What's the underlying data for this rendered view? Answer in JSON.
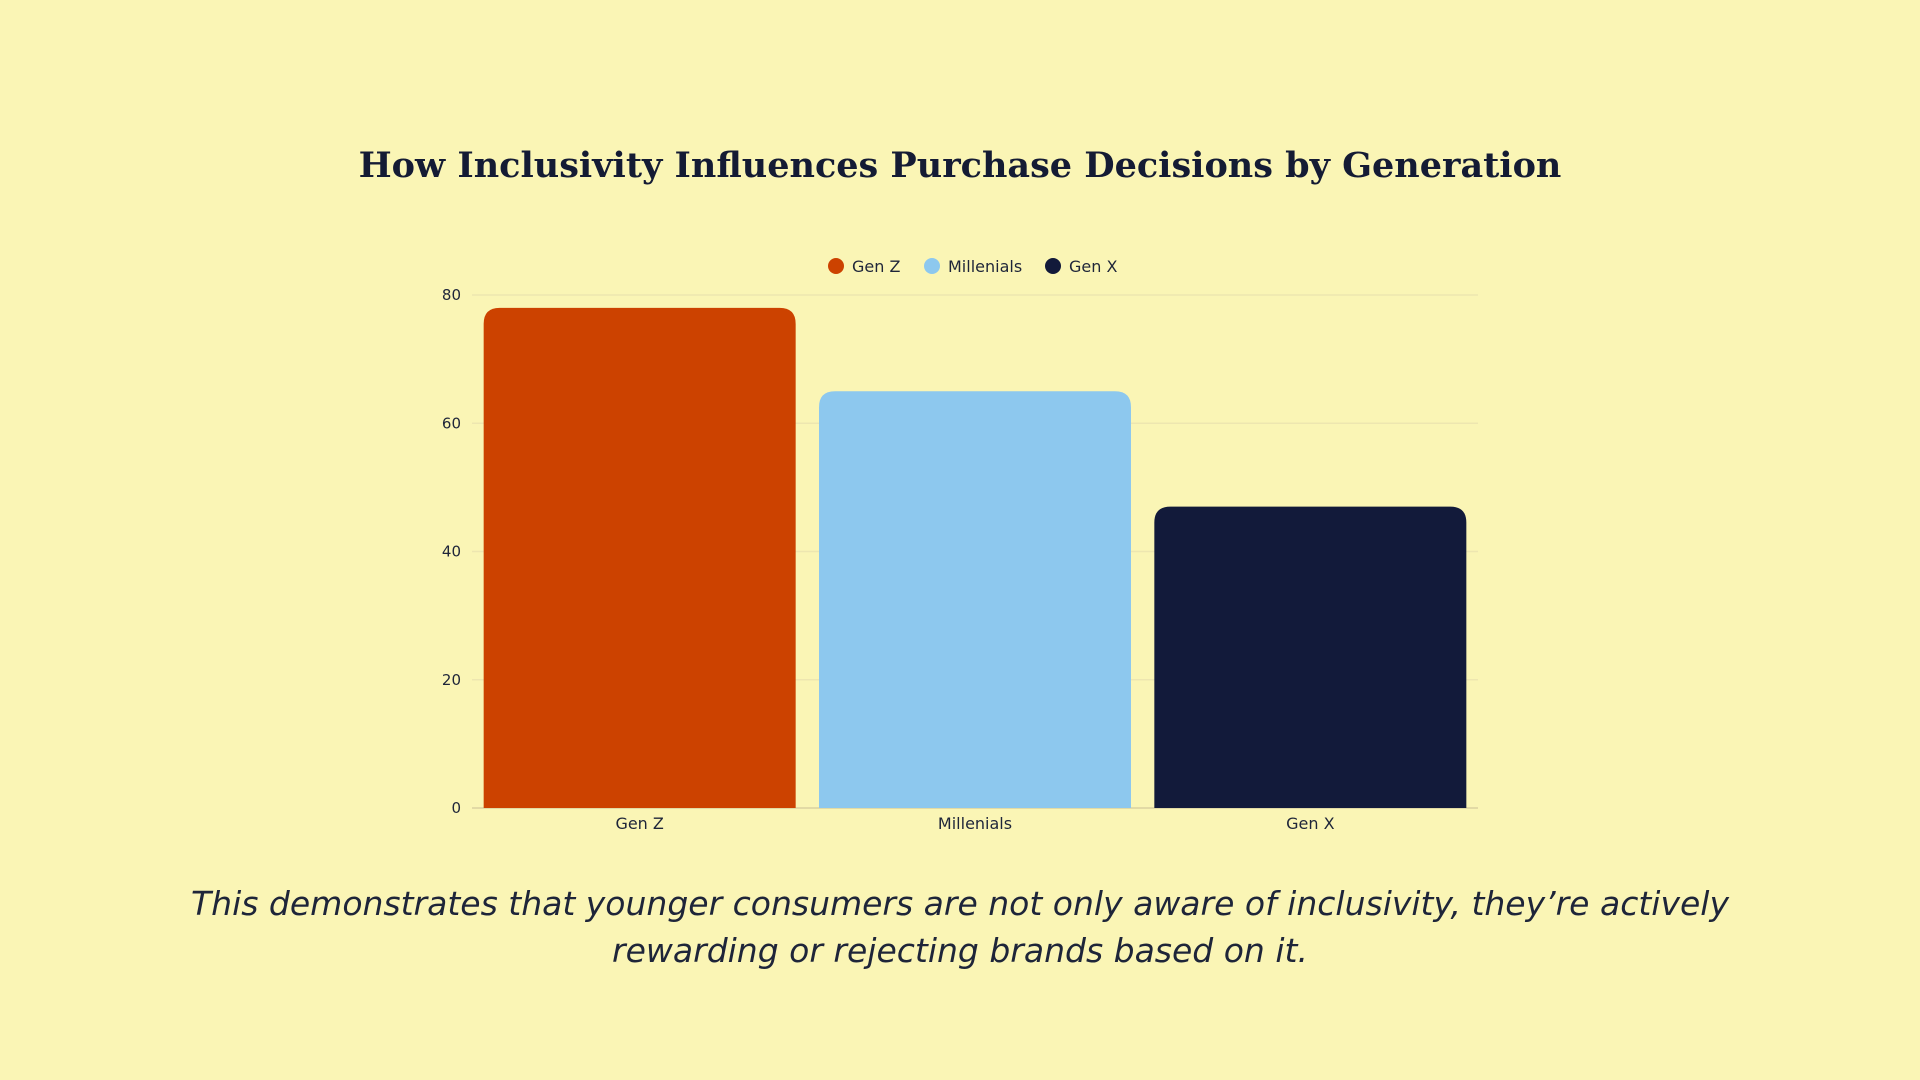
{
  "chart_data": {
    "type": "bar",
    "title": "How Inclusivity Influences Purchase Decisions by Generation",
    "categories": [
      "Gen Z",
      "Millenials",
      "Gen X"
    ],
    "values": [
      78,
      65,
      47
    ],
    "colors": [
      "#CC4200",
      "#8DC8EE",
      "#121A3A"
    ],
    "legend": [
      "Gen Z",
      "Millenials",
      "Gen X"
    ],
    "legend_placement": "top-center",
    "xlabel": "",
    "ylabel": "",
    "ylim": [
      0,
      80
    ],
    "yticks": [
      "0",
      "20",
      "40",
      "60",
      "80"
    ],
    "grid": true
  },
  "caption": "This demonstrates that younger consumers are not only aware of inclusivity, they’re actively rewarding or rejecting brands based on it."
}
